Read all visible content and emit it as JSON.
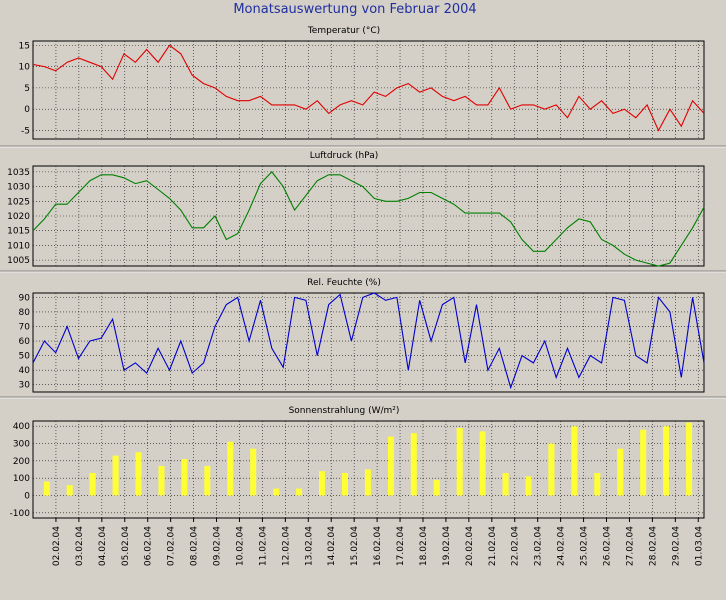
{
  "page": {
    "title": "Monatsauswertung von Februar 2004"
  },
  "x_labels": [
    "02.02.04",
    "03.02.04",
    "04.02.04",
    "05.02.04",
    "06.02.04",
    "07.02.04",
    "08.02.04",
    "09.02.04",
    "10.02.04",
    "11.02.04",
    "12.02.04",
    "13.02.04",
    "14.02.04",
    "15.02.04",
    "16.02.04",
    "17.02.04",
    "18.02.04",
    "19.02.04",
    "20.02.04",
    "21.02.04",
    "22.02.04",
    "23.02.04",
    "24.02.04",
    "25.02.04",
    "26.02.04",
    "27.02.04",
    "28.02.04",
    "29.02.04",
    "01.03.04"
  ],
  "chart_data": [
    {
      "type": "line",
      "title": "Temperatur (°C)",
      "ylim": [
        -7,
        16
      ],
      "yticks": [
        -5,
        0,
        5,
        10,
        15
      ],
      "grid": true,
      "color": "#e00000",
      "x": [
        "01.02.04",
        "01.02.04 12h",
        "02.02.04",
        "02.02.04 12h",
        "03.02.04",
        "03.02.04 12h",
        "04.02.04",
        "04.02.04 12h",
        "05.02.04",
        "05.02.04 12h",
        "06.02.04",
        "06.02.04 12h",
        "07.02.04",
        "07.02.04 12h",
        "08.02.04",
        "08.02.04 12h",
        "09.02.04",
        "09.02.04 12h",
        "10.02.04",
        "10.02.04 12h",
        "11.02.04",
        "11.02.04 12h",
        "12.02.04",
        "12.02.04 12h",
        "13.02.04",
        "13.02.04 12h",
        "14.02.04",
        "14.02.04 12h",
        "15.02.04",
        "15.02.04 12h",
        "16.02.04",
        "16.02.04 12h",
        "17.02.04",
        "17.02.04 12h",
        "18.02.04",
        "18.02.04 12h",
        "19.02.04",
        "19.02.04 12h",
        "20.02.04",
        "20.02.04 12h",
        "21.02.04",
        "21.02.04 12h",
        "22.02.04",
        "22.02.04 12h",
        "23.02.04",
        "23.02.04 12h",
        "24.02.04",
        "24.02.04 12h",
        "25.02.04",
        "25.02.04 12h",
        "26.02.04",
        "26.02.04 12h",
        "27.02.04",
        "27.02.04 12h",
        "28.02.04",
        "28.02.04 12h",
        "29.02.04",
        "29.02.04 12h",
        "01.03.04",
        "01.03.04 12h"
      ],
      "values": [
        10.5,
        10,
        9,
        11,
        12,
        11,
        10,
        7,
        13,
        11,
        14,
        11,
        15,
        13,
        8,
        6,
        5,
        3,
        2,
        2,
        3,
        1,
        1,
        1,
        0,
        2,
        -1,
        1,
        2,
        1,
        4,
        3,
        5,
        6,
        4,
        5,
        3,
        2,
        3,
        1,
        1,
        5,
        0,
        1,
        1,
        0,
        1,
        -2,
        3,
        0,
        2,
        -1,
        0,
        -2,
        1,
        -5,
        0,
        -4,
        2,
        -1
      ]
    },
    {
      "type": "line",
      "title": "Luftdruck (hPa)",
      "ylim": [
        1003,
        1037
      ],
      "yticks": [
        1005,
        1010,
        1015,
        1020,
        1025,
        1030,
        1035
      ],
      "grid": true,
      "color": "#008000",
      "values": [
        1015,
        1019,
        1024,
        1024,
        1028,
        1032,
        1034,
        1034,
        1033,
        1031,
        1032,
        1029,
        1026,
        1022,
        1016,
        1016,
        1020,
        1012,
        1014,
        1022,
        1031,
        1035,
        1030,
        1022,
        1027,
        1032,
        1034,
        1034,
        1032,
        1030,
        1026,
        1025,
        1025,
        1026,
        1028,
        1028,
        1026,
        1024,
        1021,
        1021,
        1021,
        1021,
        1018,
        1012,
        1008,
        1008,
        1012,
        1016,
        1019,
        1018,
        1012,
        1010,
        1007,
        1005,
        1004,
        1003,
        1004,
        1010,
        1016,
        1023
      ]
    },
    {
      "type": "line",
      "title": "Rel. Feuchte (%)",
      "ylim": [
        25,
        93
      ],
      "yticks": [
        30,
        40,
        50,
        60,
        70,
        80,
        90
      ],
      "grid": true,
      "color": "#0000cc",
      "values": [
        45,
        60,
        52,
        70,
        48,
        60,
        62,
        75,
        40,
        45,
        38,
        55,
        40,
        60,
        38,
        45,
        70,
        85,
        90,
        60,
        88,
        55,
        42,
        90,
        88,
        50,
        85,
        92,
        60,
        90,
        93,
        88,
        90,
        40,
        88,
        60,
        85,
        90,
        45,
        85,
        40,
        55,
        28,
        50,
        45,
        60,
        35,
        55,
        35,
        50,
        45,
        90,
        88,
        50,
        45,
        90,
        80,
        35,
        90,
        45
      ]
    },
    {
      "type": "bar",
      "title": "Sonnenstrahlung (W/m²)",
      "ylim": [
        -130,
        430
      ],
      "yticks": [
        -100,
        0,
        100,
        200,
        300,
        400
      ],
      "grid": true,
      "color": "#ffff33",
      "values": [
        80,
        60,
        130,
        230,
        250,
        170,
        210,
        170,
        310,
        270,
        40,
        40,
        140,
        130,
        150,
        340,
        360,
        90,
        390,
        370,
        130,
        110,
        300,
        400,
        130,
        270,
        380,
        400,
        420
      ]
    }
  ]
}
